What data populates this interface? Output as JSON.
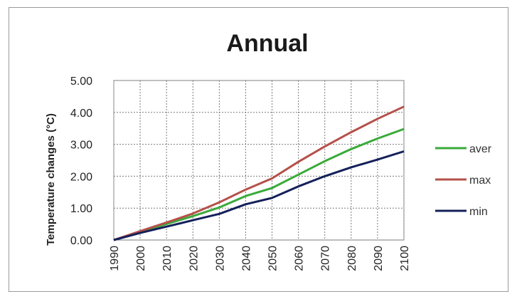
{
  "chart_data": {
    "type": "line",
    "title": "Annual",
    "xlabel": "",
    "ylabel": "Temperature changes (°C)",
    "x": [
      1990,
      2000,
      2010,
      2020,
      2030,
      2040,
      2050,
      2060,
      2070,
      2080,
      2090,
      2100
    ],
    "x_tick_labels": [
      "1990",
      "2000",
      "2010",
      "2020",
      "2030",
      "2040",
      "2050",
      "2060",
      "2070",
      "2080",
      "2090",
      "2100"
    ],
    "y_tick_labels": [
      "0.00",
      "1.00",
      "2.00",
      "3.00",
      "4.00",
      "5.00"
    ],
    "ylim": [
      0,
      5
    ],
    "grid": true,
    "legend_position": "right",
    "series": [
      {
        "name": "aver",
        "color": "#3aaa3a",
        "values": [
          0.0,
          0.25,
          0.5,
          0.75,
          1.02,
          1.38,
          1.63,
          2.05,
          2.47,
          2.85,
          3.18,
          3.48
        ]
      },
      {
        "name": "max",
        "color": "#b5504a",
        "values": [
          0.0,
          0.28,
          0.55,
          0.83,
          1.18,
          1.58,
          1.93,
          2.45,
          2.93,
          3.38,
          3.8,
          4.18
        ]
      },
      {
        "name": "min",
        "color": "#14205a",
        "values": [
          0.0,
          0.22,
          0.42,
          0.62,
          0.82,
          1.12,
          1.32,
          1.68,
          2.0,
          2.28,
          2.52,
          2.78
        ]
      }
    ]
  }
}
